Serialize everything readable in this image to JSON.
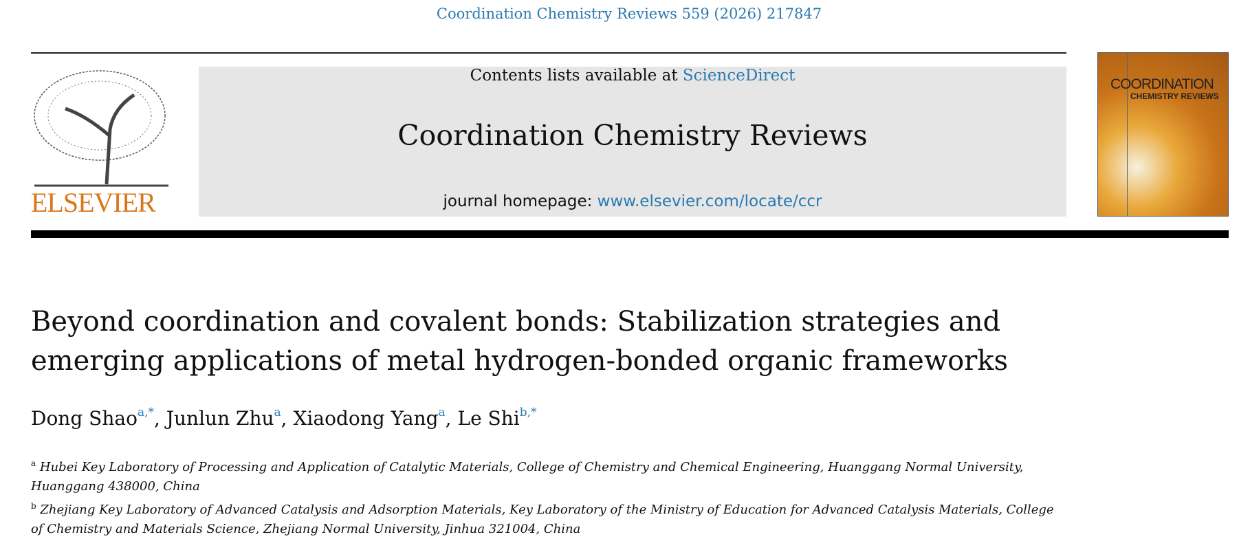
{
  "citation": "Coordination Chemistry Reviews 559 (2026) 217847",
  "publisher_logo": "ELSEVIER",
  "masthead": {
    "contents_prefix": "Contents lists available at ",
    "contents_link": "ScienceDirect",
    "journal_title": "Coordination Chemistry Reviews",
    "homepage_prefix": "journal homepage: ",
    "homepage_link": "www.elsevier.com/locate/ccr"
  },
  "cover": {
    "title_line1": "COORDINATION",
    "title_line2": "CHEMISTRY REVIEWS"
  },
  "article": {
    "title_line1": "Beyond coordination and covalent bonds: Stabilization strategies and",
    "title_line2": "emerging applications of metal hydrogen-bonded organic frameworks",
    "authors": [
      {
        "name": "Dong Shao",
        "sup": "a,*"
      },
      {
        "name": "Junlun Zhu",
        "sup": "a"
      },
      {
        "name": "Xiaodong Yang",
        "sup": "a"
      },
      {
        "name": "Le Shi",
        "sup": "b,*"
      }
    ],
    "affiliations": [
      {
        "label": "a",
        "text": "Hubei Key Laboratory of Processing and Application of Catalytic Materials, College of Chemistry and Chemical Engineering, Huanggang Normal University, Huanggang 438000, China"
      },
      {
        "label": "b",
        "text": "Zhejiang Key Laboratory of Advanced Catalysis and Adsorption Materials, Key Laboratory of the Ministry of Education for Advanced Catalysis Materials, College of Chemistry and Materials Science, Zhejiang Normal University, Jinhua 321004, China"
      }
    ]
  },
  "colors": {
    "link": "#2a7ab0",
    "elsevier_orange": "#d9781a",
    "masthead_bg": "#e6e6e6"
  }
}
